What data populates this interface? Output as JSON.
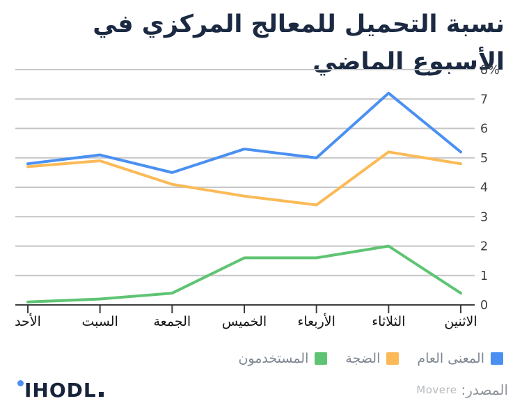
{
  "title": "نسبة التحميل للمعالج المركزي في الأسبوع الماضي",
  "chart_data": {
    "type": "line",
    "direction": "rtl",
    "categories": [
      "الأحد",
      "السبت",
      "الجمعة",
      "الخميس",
      "الأربعاء",
      "الثلاثاء",
      "الاثنين"
    ],
    "series": [
      {
        "name": "المعنى العام",
        "color": "#4a90f2",
        "values": [
          4.8,
          5.1,
          4.5,
          5.3,
          5.0,
          7.2,
          5.2
        ]
      },
      {
        "name": "الضجة",
        "color": "#fbba57",
        "values": [
          4.7,
          4.9,
          4.1,
          3.7,
          3.4,
          5.2,
          4.8
        ]
      },
      {
        "name": "المستخدمون",
        "color": "#5ec473",
        "values": [
          0.1,
          0.2,
          0.4,
          1.6,
          1.6,
          2.0,
          0.4
        ]
      }
    ],
    "ylim": [
      0,
      8
    ],
    "ytick_labels": [
      "8%",
      "7",
      "6",
      "5",
      "4",
      "3",
      "2",
      "1",
      "0"
    ],
    "grid": "horizontal",
    "legend_position": "bottom-right",
    "yaxis_side": "right"
  },
  "footer": {
    "logo_text": "IHODL",
    "source_label": "المصدر:",
    "source_value": "Movere"
  },
  "colors": {
    "title": "#1b2a42",
    "gridline": "#c6c6c6",
    "axis": "#3d3d3d",
    "x_label": "#111111",
    "y_label": "#3c4043",
    "legend_text": "#7d8791"
  }
}
